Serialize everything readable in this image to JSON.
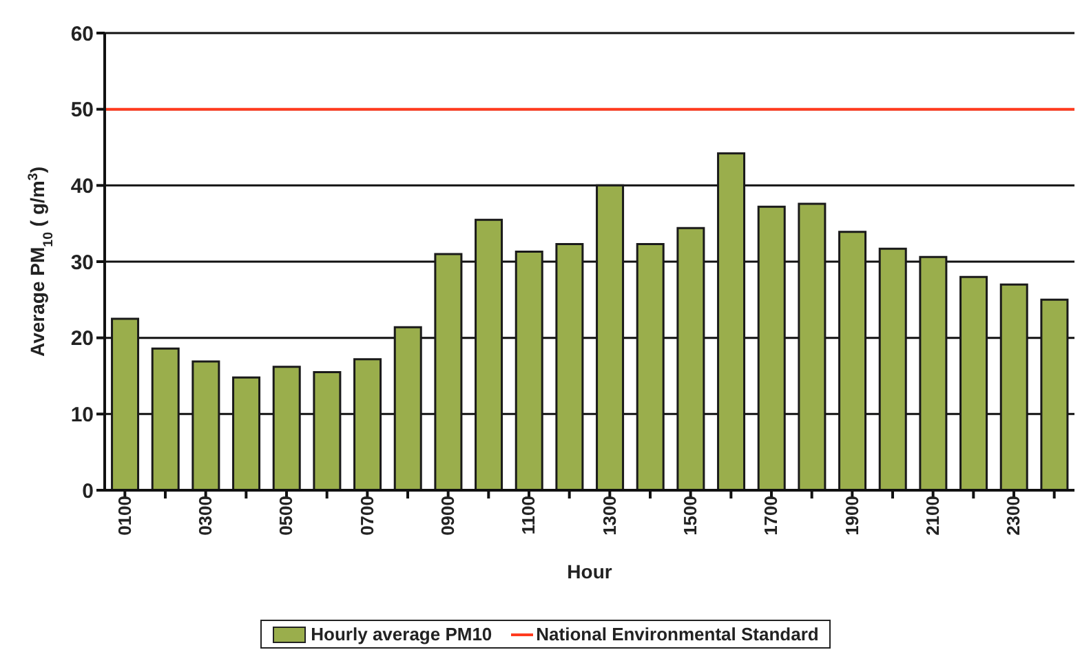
{
  "chart_data": {
    "type": "bar",
    "xlabel": "Hour",
    "ylabel": "Average PM$_{10}$ (  g/m$^{3}$)",
    "categories": [
      "0100",
      null,
      "0300",
      null,
      "0500",
      null,
      "0700",
      null,
      "0900",
      null,
      "1100",
      null,
      "1300",
      null,
      "1500",
      null,
      "1700",
      null,
      "1900",
      null,
      "2100",
      null,
      "2300",
      null
    ],
    "series": [
      {
        "name": "Hourly average PM10",
        "color": "#9aae4c",
        "values": [
          22.5,
          18.6,
          16.9,
          14.8,
          16.2,
          15.5,
          17.2,
          21.4,
          31,
          35.5,
          31.3,
          32.3,
          40,
          32.3,
          34.4,
          44.2,
          37.2,
          37.6,
          33.9,
          31.7,
          30.6,
          28,
          27,
          25
        ]
      }
    ],
    "ylim": [
      0,
      60
    ],
    "yticks": [
      0,
      10,
      20,
      30,
      40,
      50,
      60
    ],
    "grid": "y",
    "legend": "bottom",
    "ref_lines": [
      {
        "axis": "y",
        "value": 50,
        "label": "National Environmental Standard",
        "color": "#ff3b1f"
      }
    ]
  }
}
